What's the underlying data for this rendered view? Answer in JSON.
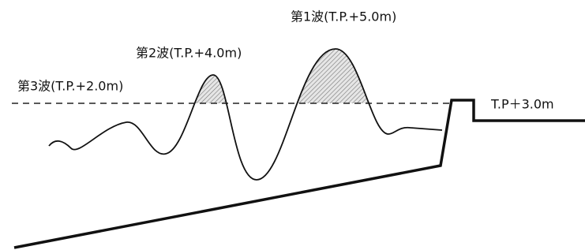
{
  "labels": {
    "wave1": "第1波(T.P.+5.0m)",
    "wave2": "第2波(T.P.+4.0m)",
    "wave3": "第3波(T.P.+2.0m)",
    "seawall": "T.P＋3.0m"
  }
}
